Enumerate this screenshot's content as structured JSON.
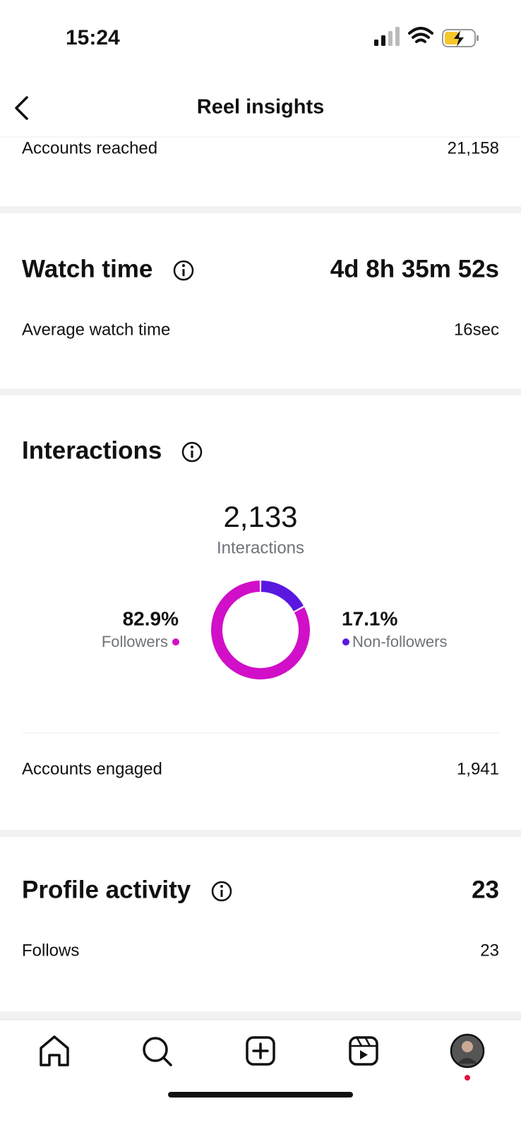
{
  "status_bar": {
    "time": "15:24"
  },
  "header": {
    "title": "Reel insights"
  },
  "reach": {
    "label": "Accounts reached",
    "value": "21,158"
  },
  "watch_time": {
    "title": "Watch time",
    "total": "4d 8h 35m 52s",
    "rows": [
      {
        "label": "Average watch time",
        "value": "16sec"
      }
    ]
  },
  "interactions": {
    "title": "Interactions",
    "total": "2,133",
    "total_label": "Interactions",
    "chart": {
      "type": "pie",
      "categories": [
        "Followers",
        "Non-followers"
      ],
      "values": [
        82.9,
        17.1
      ],
      "value_labels": [
        "82.9%",
        "17.1%"
      ],
      "colors": [
        "#d10fc8",
        "#5a17e0"
      ]
    },
    "rows": [
      {
        "label": "Accounts engaged",
        "value": "1,941"
      }
    ]
  },
  "profile_activity": {
    "title": "Profile activity",
    "total": "23",
    "rows": [
      {
        "label": "Follows",
        "value": "23"
      }
    ]
  }
}
